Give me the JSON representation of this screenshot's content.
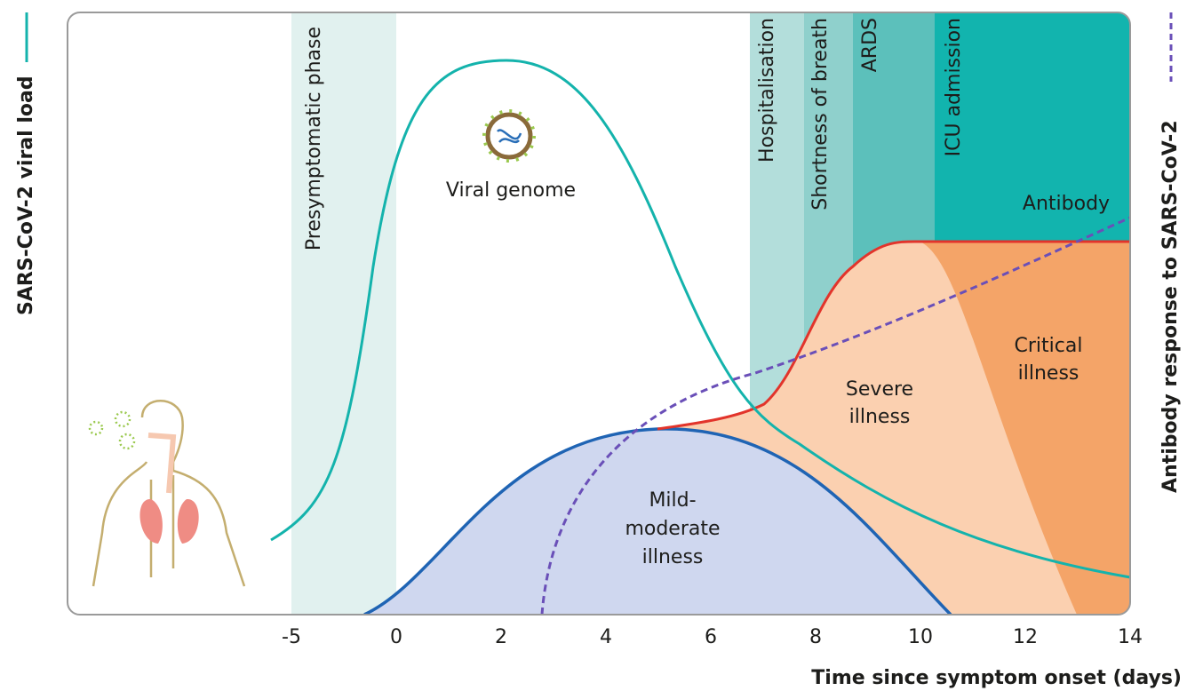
{
  "y_label_left": "SARS-CoV-2 viral load",
  "y_label_right": "Antibody response to SARS-CoV-2",
  "x_axis": {
    "title": "Time since symptom onset (days)",
    "ticks": [
      -5,
      0,
      2,
      4,
      6,
      8,
      10,
      12,
      14
    ]
  },
  "phases": [
    "Presymptomatic phase",
    "Hospitalisation",
    "Shortness of breath",
    "ARDS",
    "ICU admission"
  ],
  "curve_labels": {
    "viral_genome": "Viral genome",
    "antibody": "Antibody"
  },
  "regions": {
    "mild": [
      "Mild-",
      "moderate",
      "illness"
    ],
    "severe": [
      "Severe",
      "illness"
    ],
    "critical": [
      "Critical",
      "illness"
    ]
  }
}
